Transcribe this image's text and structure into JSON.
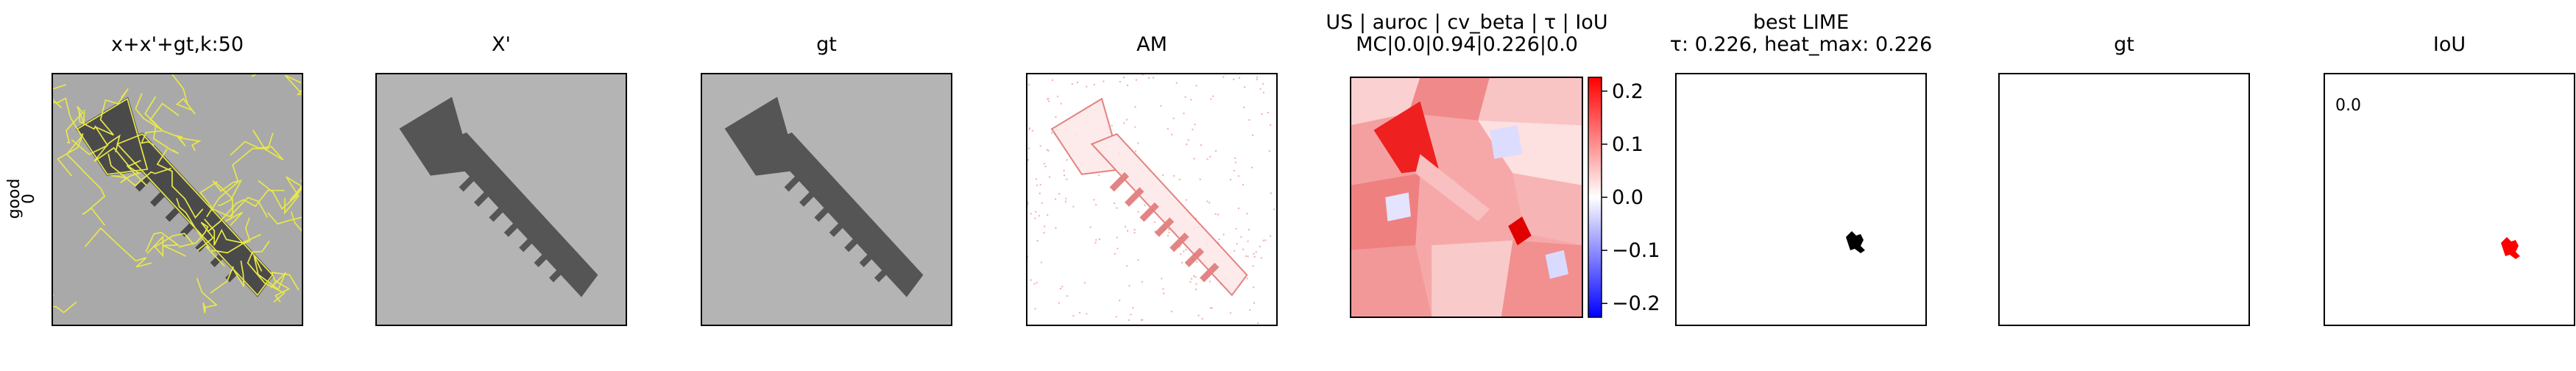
{
  "row_label": [
    "good",
    "0"
  ],
  "panels": [
    {
      "title": [
        "x+x'+gt,k:50"
      ]
    },
    {
      "title": [
        "X'"
      ]
    },
    {
      "title": [
        "gt"
      ]
    },
    {
      "title": [
        "AM"
      ]
    },
    {
      "title": [
        "US | auroc | cv_beta | τ | IoU",
        "MC|0.0|0.94|0.226|0.0"
      ]
    },
    {
      "title": [
        "best LIME",
        "τ: 0.226, heat_max: 0.226"
      ]
    },
    {
      "title": [
        "gt"
      ]
    },
    {
      "title": [
        "IoU"
      ],
      "annotation": "0.0"
    }
  ],
  "colorbar": {
    "lim": [
      -0.226,
      0.226
    ],
    "ticks": [
      0.2,
      0.1,
      {
        "value": 0,
        "label": "0.0"
      },
      {
        "value": -0.1,
        "label": "−0.1"
      },
      {
        "value": -0.2,
        "label": "−0.2"
      }
    ]
  }
}
